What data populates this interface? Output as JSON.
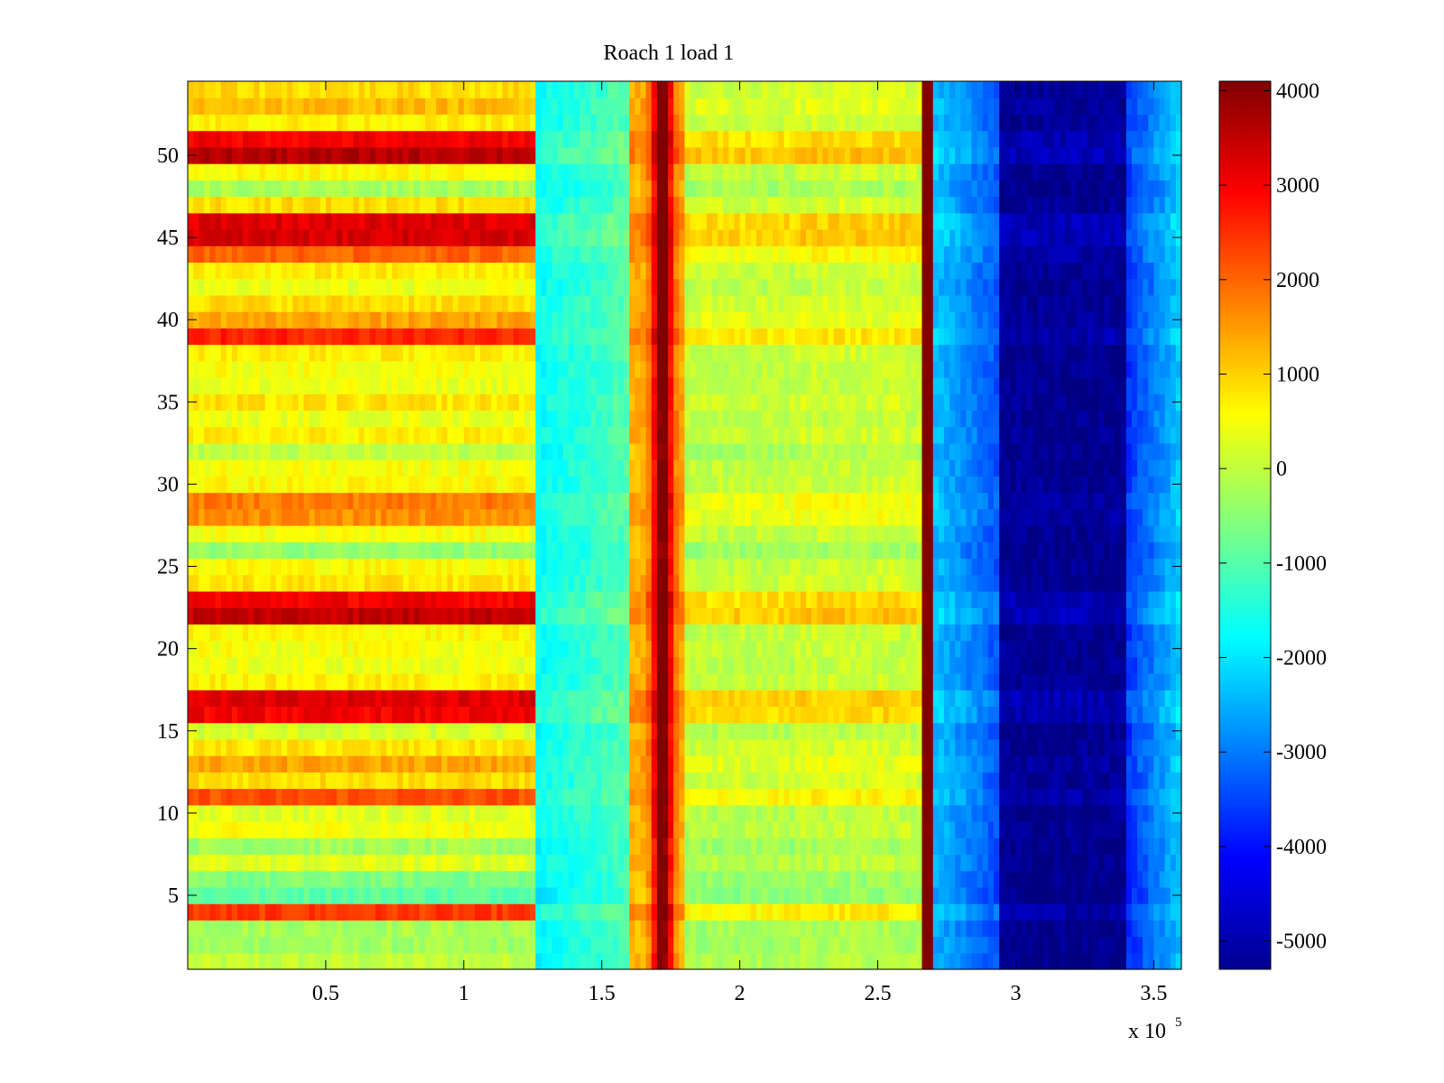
{
  "chart_data": {
    "type": "heatmap",
    "title": "Roach 1 load 1",
    "xlabel": "",
    "ylabel": "",
    "x_multiplier_label": {
      "base": "x 10",
      "exponent": "5"
    },
    "xlim": [
      0,
      3.6
    ],
    "ylim": [
      0.5,
      54.5
    ],
    "x_ticks": [
      0.5,
      1,
      1.5,
      2,
      2.5,
      3,
      3.5
    ],
    "x_tick_labels": [
      "0.5",
      "1",
      "1.5",
      "2",
      "2.5",
      "3",
      "3.5"
    ],
    "y_ticks": [
      5,
      10,
      15,
      20,
      25,
      30,
      35,
      40,
      45,
      50
    ],
    "y_tick_labels": [
      "5",
      "10",
      "15",
      "20",
      "25",
      "30",
      "35",
      "40",
      "45",
      "50"
    ],
    "rows": 54,
    "colormap": "jet",
    "clim": [
      -5300,
      4100
    ],
    "colorbar_ticks": [
      4000,
      3000,
      2000,
      1000,
      0,
      -1000,
      -2000,
      -3000,
      -4000,
      -5000
    ],
    "colorbar_tick_labels": [
      "4000",
      "3000",
      "2000",
      "1000",
      "0",
      "-1000",
      "-2000",
      "-3000",
      "-4000",
      "-5000"
    ],
    "row_bias": [
      0,
      -300,
      -200,
      2400,
      -900,
      -600,
      300,
      -300,
      500,
      300,
      2200,
      900,
      1400,
      800,
      200,
      3000,
      3200,
      700,
      400,
      500,
      600,
      3500,
      3000,
      800,
      600,
      -400,
      500,
      1600,
      1800,
      600,
      500,
      0,
      700,
      400,
      800,
      400,
      500,
      700,
      2600,
      1400,
      900,
      400,
      700,
      2000,
      3300,
      3200,
      900,
      -200,
      600,
      3600,
      3000,
      700,
      1200,
      900
    ],
    "segments": [
      {
        "x_range": [
          0,
          1.27
        ],
        "type": "base",
        "value": 0
      },
      {
        "x_range": [
          1.27,
          1.6
        ],
        "type": "gradient",
        "value": [
          -1800,
          -1100
        ]
      },
      {
        "x_range": [
          1.6,
          1.8
        ],
        "type": "ridge",
        "center": 1.72,
        "width": 0.09,
        "peak": 4300,
        "floor": 1200
      },
      {
        "x_range": [
          1.8,
          2.2
        ],
        "type": "offset",
        "value": -200
      },
      {
        "x_range": [
          2.2,
          2.66
        ],
        "type": "offset",
        "value": -100
      },
      {
        "x_range": [
          2.66,
          2.7
        ],
        "type": "spike",
        "value": 4200
      },
      {
        "x_range": [
          2.7,
          2.95
        ],
        "type": "gradient",
        "value": [
          -2400,
          -3500
        ]
      },
      {
        "x_range": [
          2.95,
          3.4
        ],
        "type": "trough",
        "value": -5200
      },
      {
        "x_range": [
          3.4,
          3.6
        ],
        "type": "gradient",
        "value": [
          -3800,
          -2300
        ]
      }
    ]
  }
}
